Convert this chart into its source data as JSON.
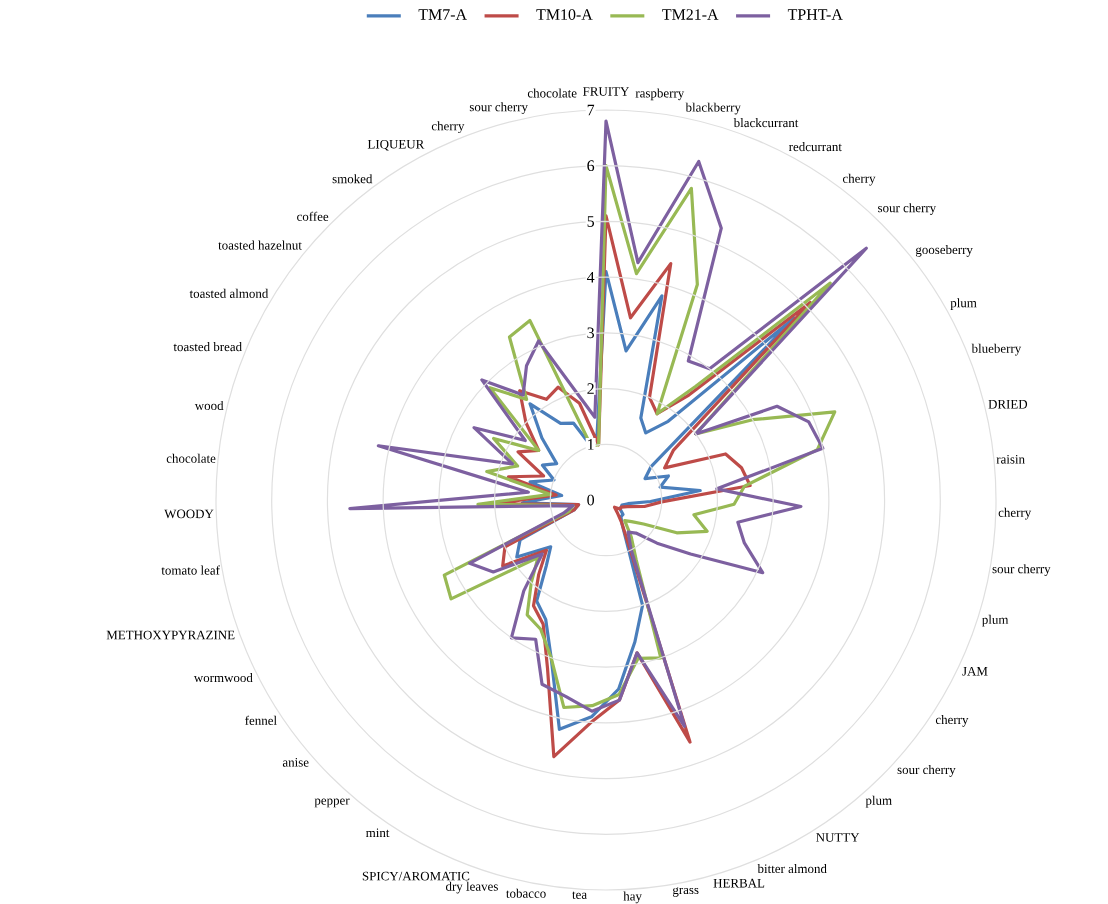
{
  "chart_data": {
    "type": "radar",
    "categories": [
      "FRUITY",
      "raspberry",
      "blackberry",
      "blackcurrant",
      "redcurrant",
      "cherry",
      "sour cherry",
      "gooseberry",
      "plum",
      "blueberry",
      "DRIED",
      "raisin",
      "cherry",
      "sour cherry",
      "plum",
      "JAM",
      "cherry",
      "sour cherry",
      "plum",
      "NUTTY",
      "bitter almond",
      "HERBAL",
      "grass",
      "hay",
      "tea",
      "tobacco",
      "dry leaves",
      "SPICY/AROMATIC",
      "mint",
      "pepper",
      "anise",
      "fennel",
      "wormwood",
      "METHOXYPYRAZINE",
      "tomato leaf",
      "WOODY",
      "chocolate",
      "wood",
      "toasted bread",
      "toasted almond",
      "toasted hazelnut",
      "coffee",
      "smoked",
      "LIQUEUR",
      "cherry",
      "sour cherry",
      "chocolate"
    ],
    "series": [
      {
        "name": "TM7-A",
        "color": "#4a7ebb",
        "values": [
          4.1,
          2.7,
          3.8,
          1.6,
          1.4,
          1.8,
          4.7,
          1.0,
          0.8,
          1.2,
          1.0,
          1.7,
          0.8,
          0.4,
          0.3,
          0.3,
          0.3,
          0.4,
          0.4,
          0.5,
          0.8,
          2.0,
          2.6,
          3.4,
          3.9,
          4.2,
          3.0,
          2.4,
          2.2,
          1.6,
          1.3,
          1.9,
          1.7,
          0.6,
          0.5,
          1.5,
          0.8,
          1.4,
          1.0,
          1.3,
          1.1,
          1.6,
          2.2,
          1.6,
          1.5,
          1.0,
          1.2
        ]
      },
      {
        "name": "TM10-A",
        "color": "#be4b48",
        "values": [
          5.1,
          3.3,
          4.4,
          2.0,
          1.8,
          2.4,
          5.1,
          1.5,
          1.2,
          2.3,
          2.5,
          2.6,
          1.0,
          0.7,
          0.4,
          0.3,
          0.3,
          0.2,
          0.3,
          0.5,
          0.9,
          4.6,
          2.8,
          3.6,
          4.0,
          4.7,
          3.2,
          2.5,
          2.3,
          1.8,
          1.4,
          2.2,
          2.0,
          0.6,
          0.5,
          2.0,
          0.9,
          1.8,
          1.2,
          1.8,
          1.5,
          2.0,
          2.5,
          2.1,
          2.2,
          1.8,
          1.0
        ]
      },
      {
        "name": "TM21-A",
        "color": "#98b954",
        "values": [
          6.0,
          4.1,
          5.8,
          4.2,
          1.8,
          2.6,
          5.6,
          2.0,
          3.0,
          4.4,
          3.9,
          2.5,
          2.3,
          1.6,
          1.9,
          1.4,
          0.8,
          0.6,
          0.5,
          0.8,
          1.2,
          3.0,
          2.9,
          3.5,
          3.7,
          3.8,
          3.0,
          2.6,
          2.5,
          2.0,
          1.6,
          3.3,
          3.2,
          0.7,
          0.6,
          2.3,
          1.0,
          2.2,
          1.7,
          2.3,
          1.5,
          2.9,
          2.3,
          3.4,
          3.5,
          1.0,
          1.0
        ]
      },
      {
        "name": "TPHT-A",
        "color": "#7d60a0",
        "values": [
          6.8,
          4.3,
          6.3,
          5.3,
          2.9,
          3.0,
          6.5,
          2.0,
          3.5,
          3.9,
          4.0,
          2.0,
          3.5,
          2.4,
          2.6,
          3.1,
          1.8,
          1.2,
          0.8,
          0.7,
          1.0,
          4.3,
          2.8,
          3.6,
          3.8,
          3.6,
          3.5,
          2.8,
          3.0,
          2.2,
          1.5,
          2.4,
          2.7,
          0.8,
          0.6,
          4.6,
          1.4,
          4.2,
          1.8,
          2.7,
          1.8,
          3.1,
          2.4,
          2.8,
          3.1,
          2.0,
          1.5
        ]
      }
    ],
    "ylim": [
      0,
      7
    ],
    "yticks": [
      0,
      1,
      2,
      3,
      4,
      5,
      6,
      7
    ],
    "grid": true,
    "legend": "top"
  }
}
